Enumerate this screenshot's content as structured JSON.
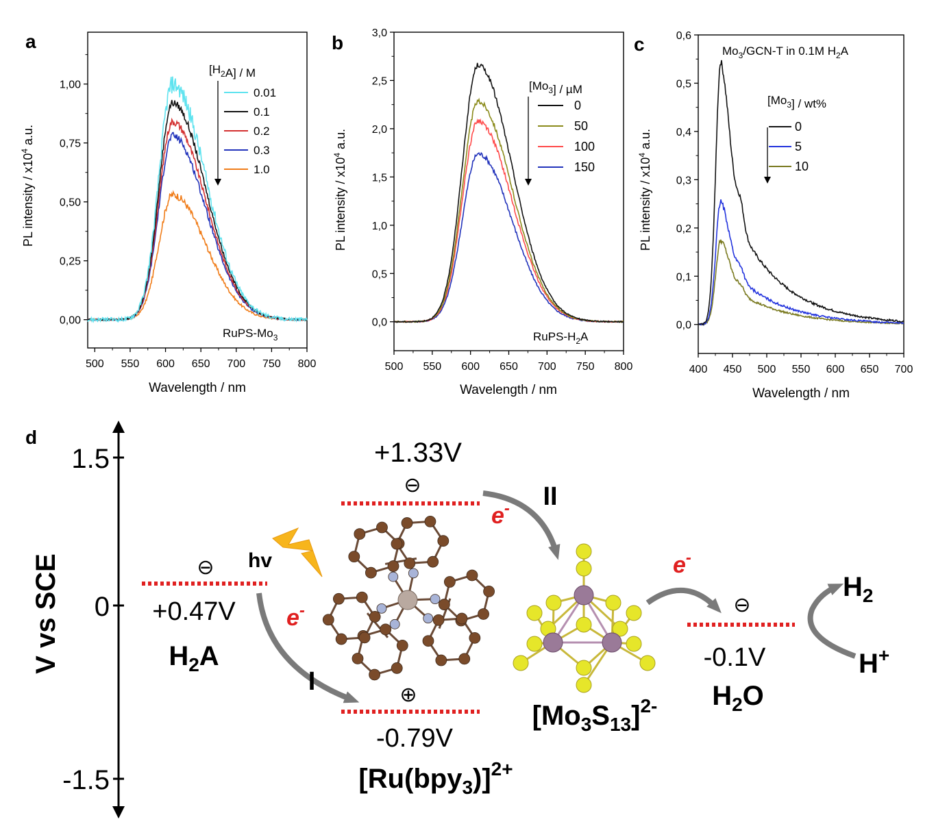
{
  "chart_data": [
    {
      "panel": "a",
      "type": "line",
      "xlabel": "Wavelength / nm",
      "ylabel": "PL intensity / x10^4 a.u.",
      "xlim": [
        490,
        800
      ],
      "ylim": [
        -0.12,
        1.22
      ],
      "xticks": [
        500,
        550,
        600,
        650,
        700,
        750,
        800
      ],
      "xtick_labels": [
        "500",
        "550",
        "600",
        "650",
        "700",
        "750",
        "800"
      ],
      "yticks": [
        0,
        0.25,
        0.5,
        0.75,
        1.0
      ],
      "ytick_labels": [
        "0,00",
        "0,25",
        "0,50",
        "0,75",
        "1,00"
      ],
      "legend_title": "[H2A] / M",
      "legend_position": "top-right",
      "annotation": "RuPS-Mo3",
      "peak_x": 610,
      "width_left": 28,
      "width_right": 55,
      "series": [
        {
          "name": "0.01",
          "color": "#5fe3ef",
          "peak": 1.0,
          "noise": 0.03
        },
        {
          "name": "0.1",
          "color": "#111111",
          "peak": 0.92,
          "noise": 0.012
        },
        {
          "name": "0.2",
          "color": "#d32f2f",
          "peak": 0.84,
          "noise": 0.012
        },
        {
          "name": "0.3",
          "color": "#2233bb",
          "peak": 0.78,
          "noise": 0.012
        },
        {
          "name": "1.0",
          "color": "#f07d1a",
          "peak": 0.53,
          "noise": 0.012
        }
      ]
    },
    {
      "panel": "b",
      "type": "line",
      "xlabel": "Wavelength / nm",
      "ylabel": "PL intensity / x10^4 a.u.",
      "xlim": [
        500,
        800
      ],
      "ylim": [
        -0.3,
        3.0
      ],
      "xticks": [
        500,
        550,
        600,
        650,
        700,
        750,
        800
      ],
      "xtick_labels": [
        "500",
        "550",
        "600",
        "650",
        "700",
        "750",
        "800"
      ],
      "yticks": [
        0,
        0.5,
        1.0,
        1.5,
        2.0,
        2.5,
        3.0
      ],
      "ytick_labels": [
        "0,0",
        "0,5",
        "1,0",
        "1,5",
        "2,0",
        "2,5",
        "3,0"
      ],
      "legend_title": "[Mo3] / µM",
      "legend_position": "top-right",
      "annotation": "RuPS-H2A",
      "peak_x": 610,
      "width_left": 30,
      "width_right": 52,
      "series": [
        {
          "name": "0",
          "color": "#111111",
          "peak": 2.66,
          "noise": 0.02
        },
        {
          "name": "50",
          "color": "#8a8a1a",
          "peak": 2.28,
          "noise": 0.02
        },
        {
          "name": "100",
          "color": "#ff4a4a",
          "peak": 2.08,
          "noise": 0.02
        },
        {
          "name": "150",
          "color": "#2233bb",
          "peak": 1.74,
          "noise": 0.02
        }
      ]
    },
    {
      "panel": "c",
      "type": "line",
      "xlabel": "Wavelength / nm",
      "ylabel": "PL intensity / x10^4 a.u.",
      "xlim": [
        400,
        700
      ],
      "ylim": [
        -0.06,
        0.6
      ],
      "xticks": [
        400,
        450,
        500,
        550,
        600,
        650,
        700
      ],
      "xtick_labels": [
        "400",
        "450",
        "500",
        "550",
        "600",
        "650",
        "700"
      ],
      "yticks": [
        0,
        0.1,
        0.2,
        0.3,
        0.4,
        0.5,
        0.6
      ],
      "ytick_labels": [
        "0,0",
        "0,1",
        "0,2",
        "0,3",
        "0,4",
        "0,5",
        "0,6"
      ],
      "title": "Mo3/GCN-T in 0.1M H2A",
      "legend_title": "[Mo3] / wt%",
      "legend_position": "top-right",
      "series": [
        {
          "name": "0",
          "color": "#111111",
          "peak": 0.545,
          "noise": 0.006
        },
        {
          "name": "5",
          "color": "#2233dd",
          "peak": 0.255,
          "noise": 0.005
        },
        {
          "name": "10",
          "color": "#7a7a20",
          "peak": 0.175,
          "noise": 0.004
        }
      ]
    }
  ],
  "panel_labels": [
    "a",
    "b",
    "c",
    "d"
  ],
  "legend_arrow_color": "#000000",
  "panel_d": {
    "axis_label": "V vs SCE",
    "ticks": [
      "1.5",
      "0",
      "-1.5"
    ],
    "levels": [
      {
        "potential": "+0.47V",
        "species": "H2A"
      },
      {
        "potential": "+1.33V"
      },
      {
        "potential": "-0.79V",
        "species": "[Ru(bpy3)]2+"
      },
      {
        "potential": "-0.1V",
        "species": "H2O"
      }
    ],
    "cluster_label": "[Mo3S13]2-",
    "hv": "hv",
    "electron": "e-",
    "steps": [
      "I",
      "II"
    ],
    "products": [
      "H2",
      "H+"
    ],
    "minus_symbol": "⊖",
    "plus_symbol": "⊕",
    "level_color": "#e02020",
    "electron_color": "#e02020",
    "ru_ligand_color": "#7a4b2a",
    "n_color": "#a8b4d8",
    "ru_center_color": "#b9a9a0",
    "mo_color": "#9a7a98",
    "s_color": "#e6e62a"
  }
}
